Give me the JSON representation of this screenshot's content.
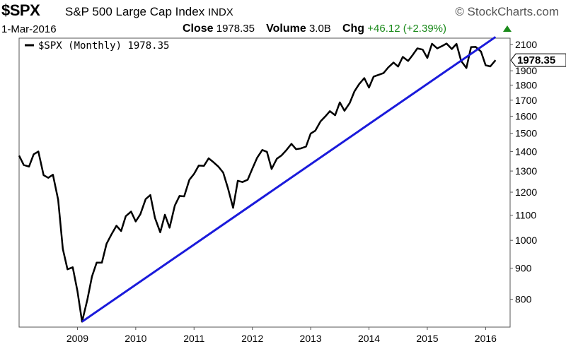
{
  "header": {
    "symbol": "$SPX",
    "name": "S&P 500 Large Cap Index",
    "exchange": "INDX",
    "brand": "© StockCharts.com",
    "date": "1-Mar-2016",
    "close_label": "Close",
    "close_value": "1978.35",
    "volume_label": "Volume",
    "volume_value": "3.0B",
    "chg_label": "Chg",
    "chg_value": "+46.12 (+2.39%)",
    "chg_color": "#1a8a1a"
  },
  "chart_data": {
    "type": "line",
    "log_scale": true,
    "grid": false,
    "legend_position": "top-left",
    "legend_text": "$SPX (Monthly) 1978.35",
    "last_value_label": "1978.35",
    "x_range": [
      2008.0,
      2016.42
    ],
    "y_range": [
      720,
      2150
    ],
    "x_ticks": [
      2009,
      2010,
      2011,
      2012,
      2013,
      2014,
      2015,
      2016
    ],
    "y_ticks": [
      800,
      900,
      1000,
      1100,
      1200,
      1300,
      1400,
      1500,
      1600,
      1700,
      1800,
      1900,
      2100
    ],
    "series": [
      {
        "name": "$SPX (Monthly)",
        "color": "#000000",
        "points": [
          [
            2008.0,
            1378
          ],
          [
            2008.08,
            1330
          ],
          [
            2008.17,
            1322
          ],
          [
            2008.25,
            1385
          ],
          [
            2008.33,
            1400
          ],
          [
            2008.42,
            1280
          ],
          [
            2008.5,
            1267
          ],
          [
            2008.58,
            1282
          ],
          [
            2008.67,
            1166
          ],
          [
            2008.75,
            968
          ],
          [
            2008.83,
            896
          ],
          [
            2008.92,
            903
          ],
          [
            2009.0,
            826
          ],
          [
            2009.08,
            735
          ],
          [
            2009.17,
            798
          ],
          [
            2009.25,
            872
          ],
          [
            2009.33,
            919
          ],
          [
            2009.42,
            919
          ],
          [
            2009.5,
            987
          ],
          [
            2009.58,
            1021
          ],
          [
            2009.67,
            1057
          ],
          [
            2009.75,
            1036
          ],
          [
            2009.83,
            1096
          ],
          [
            2009.92,
            1115
          ],
          [
            2010.0,
            1074
          ],
          [
            2010.08,
            1104
          ],
          [
            2010.17,
            1169
          ],
          [
            2010.25,
            1187
          ],
          [
            2010.33,
            1089
          ],
          [
            2010.42,
            1031
          ],
          [
            2010.5,
            1102
          ],
          [
            2010.58,
            1049
          ],
          [
            2010.67,
            1141
          ],
          [
            2010.75,
            1183
          ],
          [
            2010.83,
            1181
          ],
          [
            2010.92,
            1258
          ],
          [
            2011.0,
            1286
          ],
          [
            2011.08,
            1327
          ],
          [
            2011.17,
            1326
          ],
          [
            2011.25,
            1364
          ],
          [
            2011.33,
            1345
          ],
          [
            2011.42,
            1321
          ],
          [
            2011.5,
            1292
          ],
          [
            2011.58,
            1219
          ],
          [
            2011.67,
            1131
          ],
          [
            2011.75,
            1253
          ],
          [
            2011.83,
            1247
          ],
          [
            2011.92,
            1258
          ],
          [
            2012.0,
            1312
          ],
          [
            2012.08,
            1366
          ],
          [
            2012.17,
            1408
          ],
          [
            2012.25,
            1398
          ],
          [
            2012.33,
            1310
          ],
          [
            2012.42,
            1362
          ],
          [
            2012.5,
            1379
          ],
          [
            2012.58,
            1406
          ],
          [
            2012.67,
            1441
          ],
          [
            2012.75,
            1412
          ],
          [
            2012.83,
            1416
          ],
          [
            2012.92,
            1426
          ],
          [
            2013.0,
            1498
          ],
          [
            2013.08,
            1515
          ],
          [
            2013.17,
            1569
          ],
          [
            2013.25,
            1598
          ],
          [
            2013.33,
            1631
          ],
          [
            2013.42,
            1606
          ],
          [
            2013.5,
            1686
          ],
          [
            2013.58,
            1633
          ],
          [
            2013.67,
            1682
          ],
          [
            2013.75,
            1757
          ],
          [
            2013.83,
            1806
          ],
          [
            2013.92,
            1848
          ],
          [
            2014.0,
            1783
          ],
          [
            2014.08,
            1859
          ],
          [
            2014.17,
            1872
          ],
          [
            2014.25,
            1884
          ],
          [
            2014.33,
            1924
          ],
          [
            2014.42,
            1960
          ],
          [
            2014.5,
            1931
          ],
          [
            2014.58,
            2003
          ],
          [
            2014.67,
            1972
          ],
          [
            2014.75,
            2018
          ],
          [
            2014.83,
            2068
          ],
          [
            2014.92,
            2059
          ],
          [
            2015.0,
            1995
          ],
          [
            2015.08,
            2105
          ],
          [
            2015.17,
            2068
          ],
          [
            2015.25,
            2086
          ],
          [
            2015.33,
            2107
          ],
          [
            2015.42,
            2063
          ],
          [
            2015.5,
            2104
          ],
          [
            2015.58,
            1972
          ],
          [
            2015.67,
            1920
          ],
          [
            2015.75,
            2079
          ],
          [
            2015.83,
            2080
          ],
          [
            2015.92,
            2044
          ],
          [
            2016.0,
            1940
          ],
          [
            2016.08,
            1932
          ],
          [
            2016.17,
            1978
          ]
        ]
      },
      {
        "name": "",
        "color": "#1a1adb",
        "points": [
          [
            2009.08,
            735
          ],
          [
            2016.17,
            2160
          ]
        ]
      }
    ]
  }
}
